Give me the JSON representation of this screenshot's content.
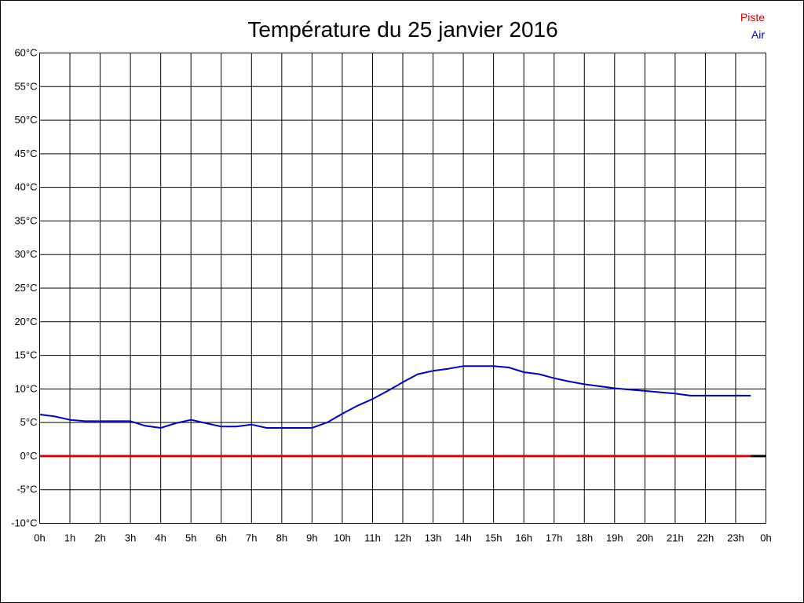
{
  "chart_data": {
    "type": "line",
    "title": "Température du 25 janvier 2016",
    "xlabel": "",
    "ylabel": "",
    "x_unit": "hours",
    "xlim": [
      0,
      24
    ],
    "ylim": [
      -10,
      60
    ],
    "grid": true,
    "legend_position": "top-right",
    "x_tick_labels": [
      "0h",
      "1h",
      "2h",
      "3h",
      "4h",
      "5h",
      "6h",
      "7h",
      "8h",
      "9h",
      "10h",
      "11h",
      "12h",
      "13h",
      "14h",
      "15h",
      "16h",
      "17h",
      "18h",
      "19h",
      "20h",
      "21h",
      "22h",
      "23h",
      "0h"
    ],
    "y_ticks": [
      60,
      55,
      50,
      45,
      40,
      35,
      30,
      25,
      20,
      15,
      10,
      5,
      0,
      -5,
      -10
    ],
    "y_tick_labels": [
      "60°C",
      "55°C",
      "50°C",
      "45°C",
      "40°C",
      "35°C",
      "30°C",
      "25°C",
      "20°C",
      "15°C",
      "10°C",
      "5°C",
      "0°C",
      "-5°C",
      "-10°C"
    ],
    "series": [
      {
        "name": "Piste",
        "color": "#e00000",
        "x": [
          0,
          23.5
        ],
        "y": [
          0,
          0
        ]
      },
      {
        "name": "Air",
        "color": "#0000c0",
        "x": [
          0,
          0.5,
          1,
          1.5,
          2,
          2.5,
          3,
          3.5,
          4,
          4.5,
          5,
          5.5,
          6,
          6.5,
          7,
          7.5,
          8,
          8.5,
          9,
          9.5,
          10,
          10.5,
          11,
          11.5,
          12,
          12.5,
          13,
          13.5,
          14,
          14.5,
          15,
          15.5,
          16,
          16.5,
          17,
          17.5,
          18,
          18.5,
          19,
          19.5,
          20,
          20.5,
          21,
          21.5,
          22,
          22.5,
          23,
          23.5
        ],
        "y": [
          6.2,
          5.9,
          5.4,
          5.2,
          5.2,
          5.2,
          5.2,
          4.5,
          4.2,
          4.9,
          5.4,
          4.9,
          4.4,
          4.4,
          4.7,
          4.2,
          4.2,
          4.2,
          4.2,
          5.0,
          6.3,
          7.5,
          8.5,
          9.7,
          11.0,
          12.2,
          12.7,
          13.0,
          13.4,
          13.4,
          13.4,
          13.2,
          12.5,
          12.2,
          11.6,
          11.1,
          10.7,
          10.4,
          10.1,
          9.9,
          9.7,
          9.5,
          9.3,
          9.0,
          9.0,
          9.0,
          9.0,
          9.0
        ]
      }
    ],
    "axis_extension": {
      "x": [
        23.5,
        24
      ],
      "y": [
        0,
        0
      ],
      "color": "#000000"
    }
  }
}
